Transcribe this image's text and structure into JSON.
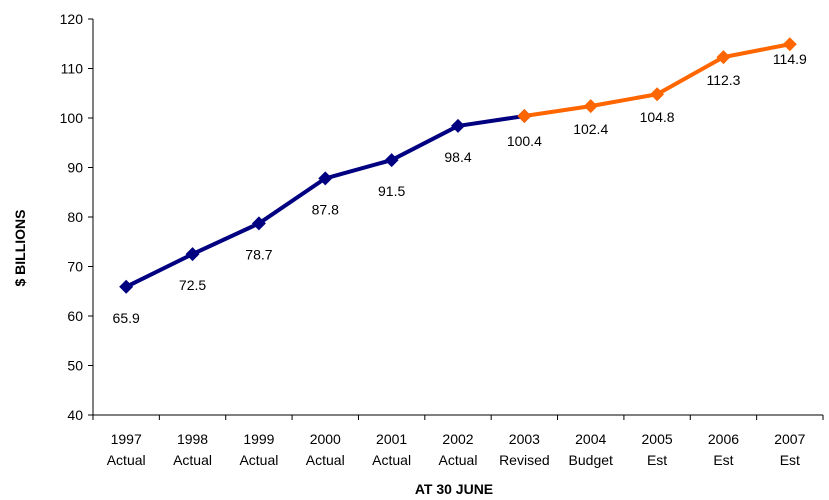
{
  "chart_data": {
    "type": "line",
    "title": "",
    "xlabel": "AT 30 JUNE",
    "ylabel": "$ BILLIONS",
    "ylim": [
      40,
      120
    ],
    "yticks": [
      40,
      50,
      60,
      70,
      80,
      90,
      100,
      110,
      120
    ],
    "grid": false,
    "legend": "none",
    "categories": [
      [
        "1997",
        "Actual"
      ],
      [
        "1998",
        "Actual"
      ],
      [
        "1999",
        "Actual"
      ],
      [
        "2000",
        "Actual"
      ],
      [
        "2001",
        "Actual"
      ],
      [
        "2002",
        "Actual"
      ],
      [
        "2003",
        "Revised"
      ],
      [
        "2004",
        "Budget"
      ],
      [
        "2005",
        "Est"
      ],
      [
        "2006",
        "Est"
      ],
      [
        "2007",
        "Est"
      ]
    ],
    "series": [
      {
        "color": "#000080",
        "values": [
          65.9,
          72.5,
          78.7,
          87.8,
          91.5,
          98.4,
          100.4,
          null,
          null,
          null,
          null
        ],
        "labels": [
          "65.9",
          "72.5",
          "78.7",
          "87.8",
          "91.5",
          "98.4",
          "100.4",
          null,
          null,
          null,
          null
        ]
      },
      {
        "color": "#FF6600",
        "values": [
          null,
          null,
          null,
          null,
          null,
          null,
          100.4,
          102.4,
          104.8,
          112.3,
          114.9
        ],
        "labels": [
          null,
          null,
          null,
          null,
          null,
          null,
          null,
          "102.4",
          "104.8",
          "112.3",
          "114.9"
        ]
      }
    ]
  }
}
